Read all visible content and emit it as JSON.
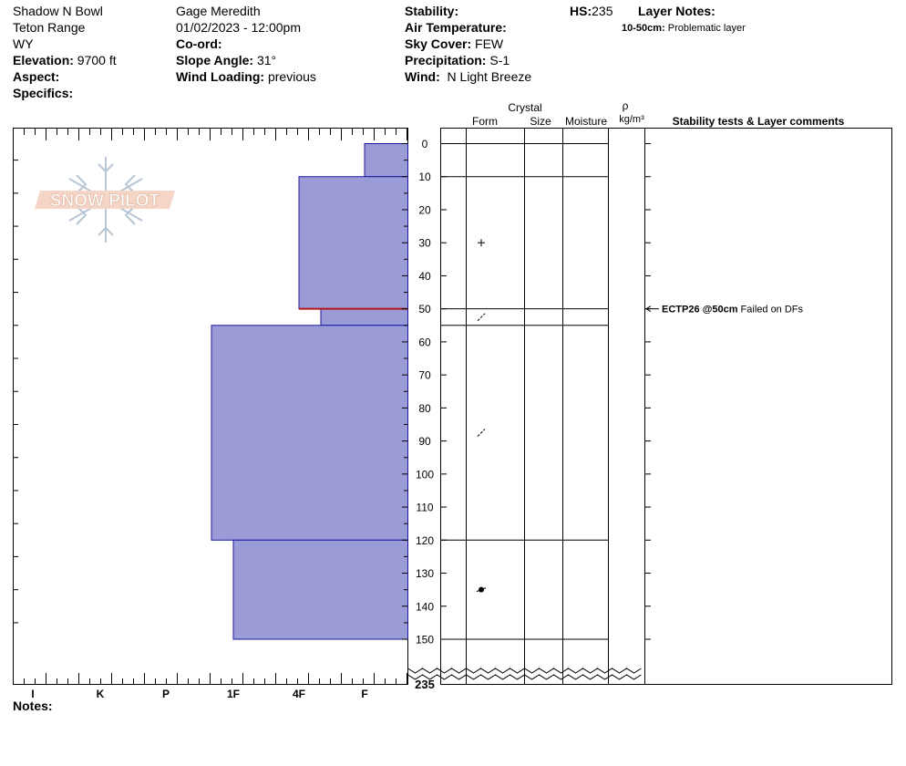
{
  "header": {
    "location": "Shadow N Bowl",
    "range": "Teton Range",
    "state": "WY",
    "elevation_label": "Elevation:",
    "elevation_value": "9700 ft",
    "aspect_label": "Aspect:",
    "aspect_value": "",
    "specifics_label": "Specifics:",
    "specifics_value": "",
    "observer": "Gage Meredith",
    "datetime": "01/02/2023 - 12:00pm",
    "coord_label": "Co-ord:",
    "coord_value": "",
    "slope_label": "Slope Angle:",
    "slope_value": "31°",
    "wind_loading_label": "Wind Loading:",
    "wind_loading_value": "previous",
    "stability_label": "Stability:",
    "stability_value": "",
    "air_temp_label": "Air Temperature:",
    "air_temp_value": "",
    "sky_label": "Sky Cover:",
    "sky_value": "FEW",
    "precip_label": "Precipitation:",
    "precip_value": "S-1",
    "wind_label": "Wind:",
    "wind_value": "N Light Breeze",
    "hs_label": "HS:",
    "hs_value": "235",
    "layer_notes_label": "Layer Notes:",
    "layer_note_range": "10-50cm:",
    "layer_note_text": "Problematic layer"
  },
  "logo_text": "SNOW PILOT",
  "notes_label": "Notes:",
  "notes_value": "",
  "columns": {
    "crystal": "Crystal",
    "form": "Form",
    "size": "Size",
    "moisture": "Moisture",
    "rho": "ρ",
    "density_unit": "kg/m³",
    "stability_tests": "Stability tests & Layer comments"
  },
  "colors": {
    "hardness_fill": "#9b9bd7",
    "hardness_stroke": "#1a1aa0",
    "weak_layer": "#b01818",
    "grid": "#000000"
  },
  "chart_data": {
    "type": "bar",
    "title": "",
    "xlabel": "",
    "ylabel": "",
    "hardness_scale": [
      "I",
      "K",
      "P",
      "1F",
      "4F",
      "F"
    ],
    "depth_ticks": [
      0,
      10,
      20,
      30,
      40,
      50,
      60,
      70,
      80,
      90,
      100,
      110,
      120,
      130,
      140,
      150
    ],
    "depth_break_label": "235",
    "ylim": [
      0,
      150
    ],
    "layers": [
      {
        "top": 0,
        "bottom": 10,
        "hardness": "F",
        "form_symbol": "none"
      },
      {
        "top": 10,
        "bottom": 50,
        "hardness": "4F",
        "form_symbol": "plus"
      },
      {
        "top": 50,
        "bottom": 55,
        "hardness": "4F-",
        "form_symbol": "slash"
      },
      {
        "top": 55,
        "bottom": 120,
        "hardness": "1F+",
        "form_symbol": "slash"
      },
      {
        "top": 120,
        "bottom": 150,
        "hardness": "1F",
        "form_symbol": "round"
      }
    ],
    "weak_layer_depth": 50,
    "tests": [
      {
        "depth": 50,
        "code": "ECTP26 @50cm",
        "comment": "Failed on DFs"
      }
    ]
  }
}
